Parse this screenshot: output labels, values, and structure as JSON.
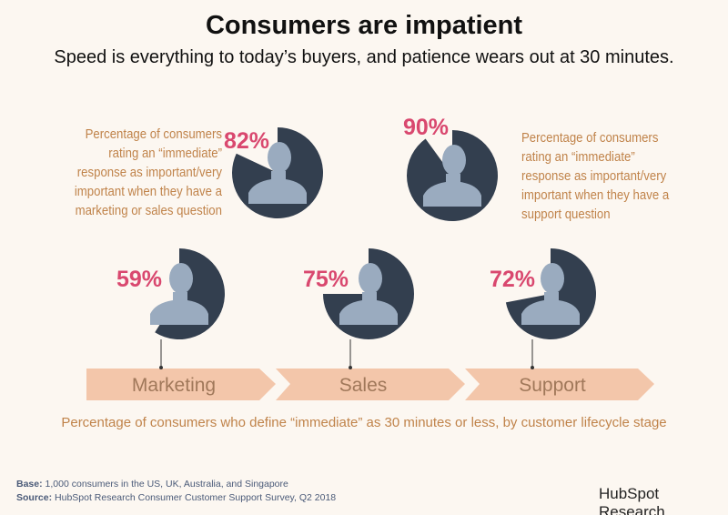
{
  "header": {
    "title": "Consumers are impatient",
    "subtitle": "Speed is everything to today’s buyers, and patience wears out at 30 minutes."
  },
  "chart_data": [
    {
      "type": "pie",
      "title": "",
      "description": "Percentage of consumers rating an “immediate” response as important/very important when they have a marketing or sales question",
      "value": 82,
      "label": "82%"
    },
    {
      "type": "pie",
      "title": "",
      "description": "Percentage of consumers rating an “immediate” response as important/very important when they have a support question",
      "value": 90,
      "label": "90%"
    },
    {
      "type": "pie",
      "category": "Marketing",
      "value": 59,
      "label": "59%"
    },
    {
      "type": "pie",
      "category": "Sales",
      "value": 75,
      "label": "75%"
    },
    {
      "type": "pie",
      "category": "Support",
      "value": 72,
      "label": "72%"
    }
  ],
  "top_left_desc": [
    "Percentage of consumers",
    "rating an “immediate”",
    "response as important/very",
    "important when they have a",
    "marketing or sales question"
  ],
  "top_right_desc": [
    "Percentage of consumers",
    "rating an “immediate”",
    "response as important/very",
    "important when they have a",
    "support question"
  ],
  "stages": [
    "Marketing",
    "Sales",
    "Support"
  ],
  "caption": "Percentage of consumers who define “immediate” as 30 minutes or less, by customer lifecycle stage",
  "footer": {
    "base_label": "Base:",
    "base": "1,000 consumers in the US, UK, Australia, and Singapore",
    "source_label": "Source:",
    "source": "HubSpot Research Consumer Customer Support Survey, Q2 2018",
    "logo": "HubSpot Research"
  },
  "colors": {
    "background": "#fcf7f1",
    "pie": "#333f4f",
    "silhouette": "#9aabbf",
    "percent": "#d9486f",
    "text": "#c0834a",
    "arrow": "#f3c6aa",
    "arrow_text": "#a0785a"
  }
}
